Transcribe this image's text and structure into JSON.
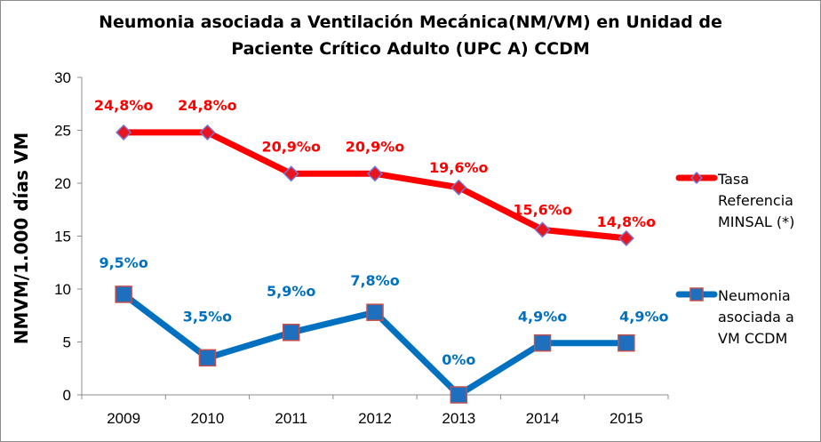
{
  "chart_data": {
    "type": "line",
    "title_lines": [
      "Neumonia asociada a Ventilación Mecánica(NM/VM) en Unidad de",
      "Paciente Crítico Adulto (UPC A) CCDM"
    ],
    "ylabel": "NMVM/1.000 días VM",
    "xlabel": "",
    "categories": [
      "2009",
      "2010",
      "2011",
      "2012",
      "2013",
      "2014",
      "2015"
    ],
    "ylim": [
      0,
      30
    ],
    "yticks": [
      "0",
      "5",
      "10",
      "15",
      "20",
      "25",
      "30"
    ],
    "grid": false,
    "legend_position": "right",
    "series": [
      {
        "name_lines": [
          "Tasa",
          "Referencia",
          "MINSAL (*)"
        ],
        "values": [
          24.8,
          24.8,
          20.9,
          20.9,
          19.6,
          15.6,
          14.8
        ],
        "labels": [
          "24,8%o",
          "24,8%o",
          "20,9%o",
          "20,9%o",
          "19,6%o",
          "15,6%o",
          "14,8%o"
        ],
        "color": "#ff0000",
        "marker_fill": "#e8141e",
        "marker_stroke": "#7b73c9",
        "marker": "diamond"
      },
      {
        "name_lines": [
          "Neumonia",
          "asociada a",
          "VM CCDM"
        ],
        "values": [
          9.5,
          3.5,
          5.9,
          7.8,
          0,
          4.9,
          4.9
        ],
        "labels": [
          "9,5%o",
          "3,5%o",
          "5,9%o",
          "7,8%o",
          "0%o",
          "4,9%o",
          "4,9%o"
        ],
        "color": "#0070c0",
        "marker_fill": "#1f6fbf",
        "marker_stroke": "#c0504d",
        "marker": "square"
      }
    ]
  }
}
